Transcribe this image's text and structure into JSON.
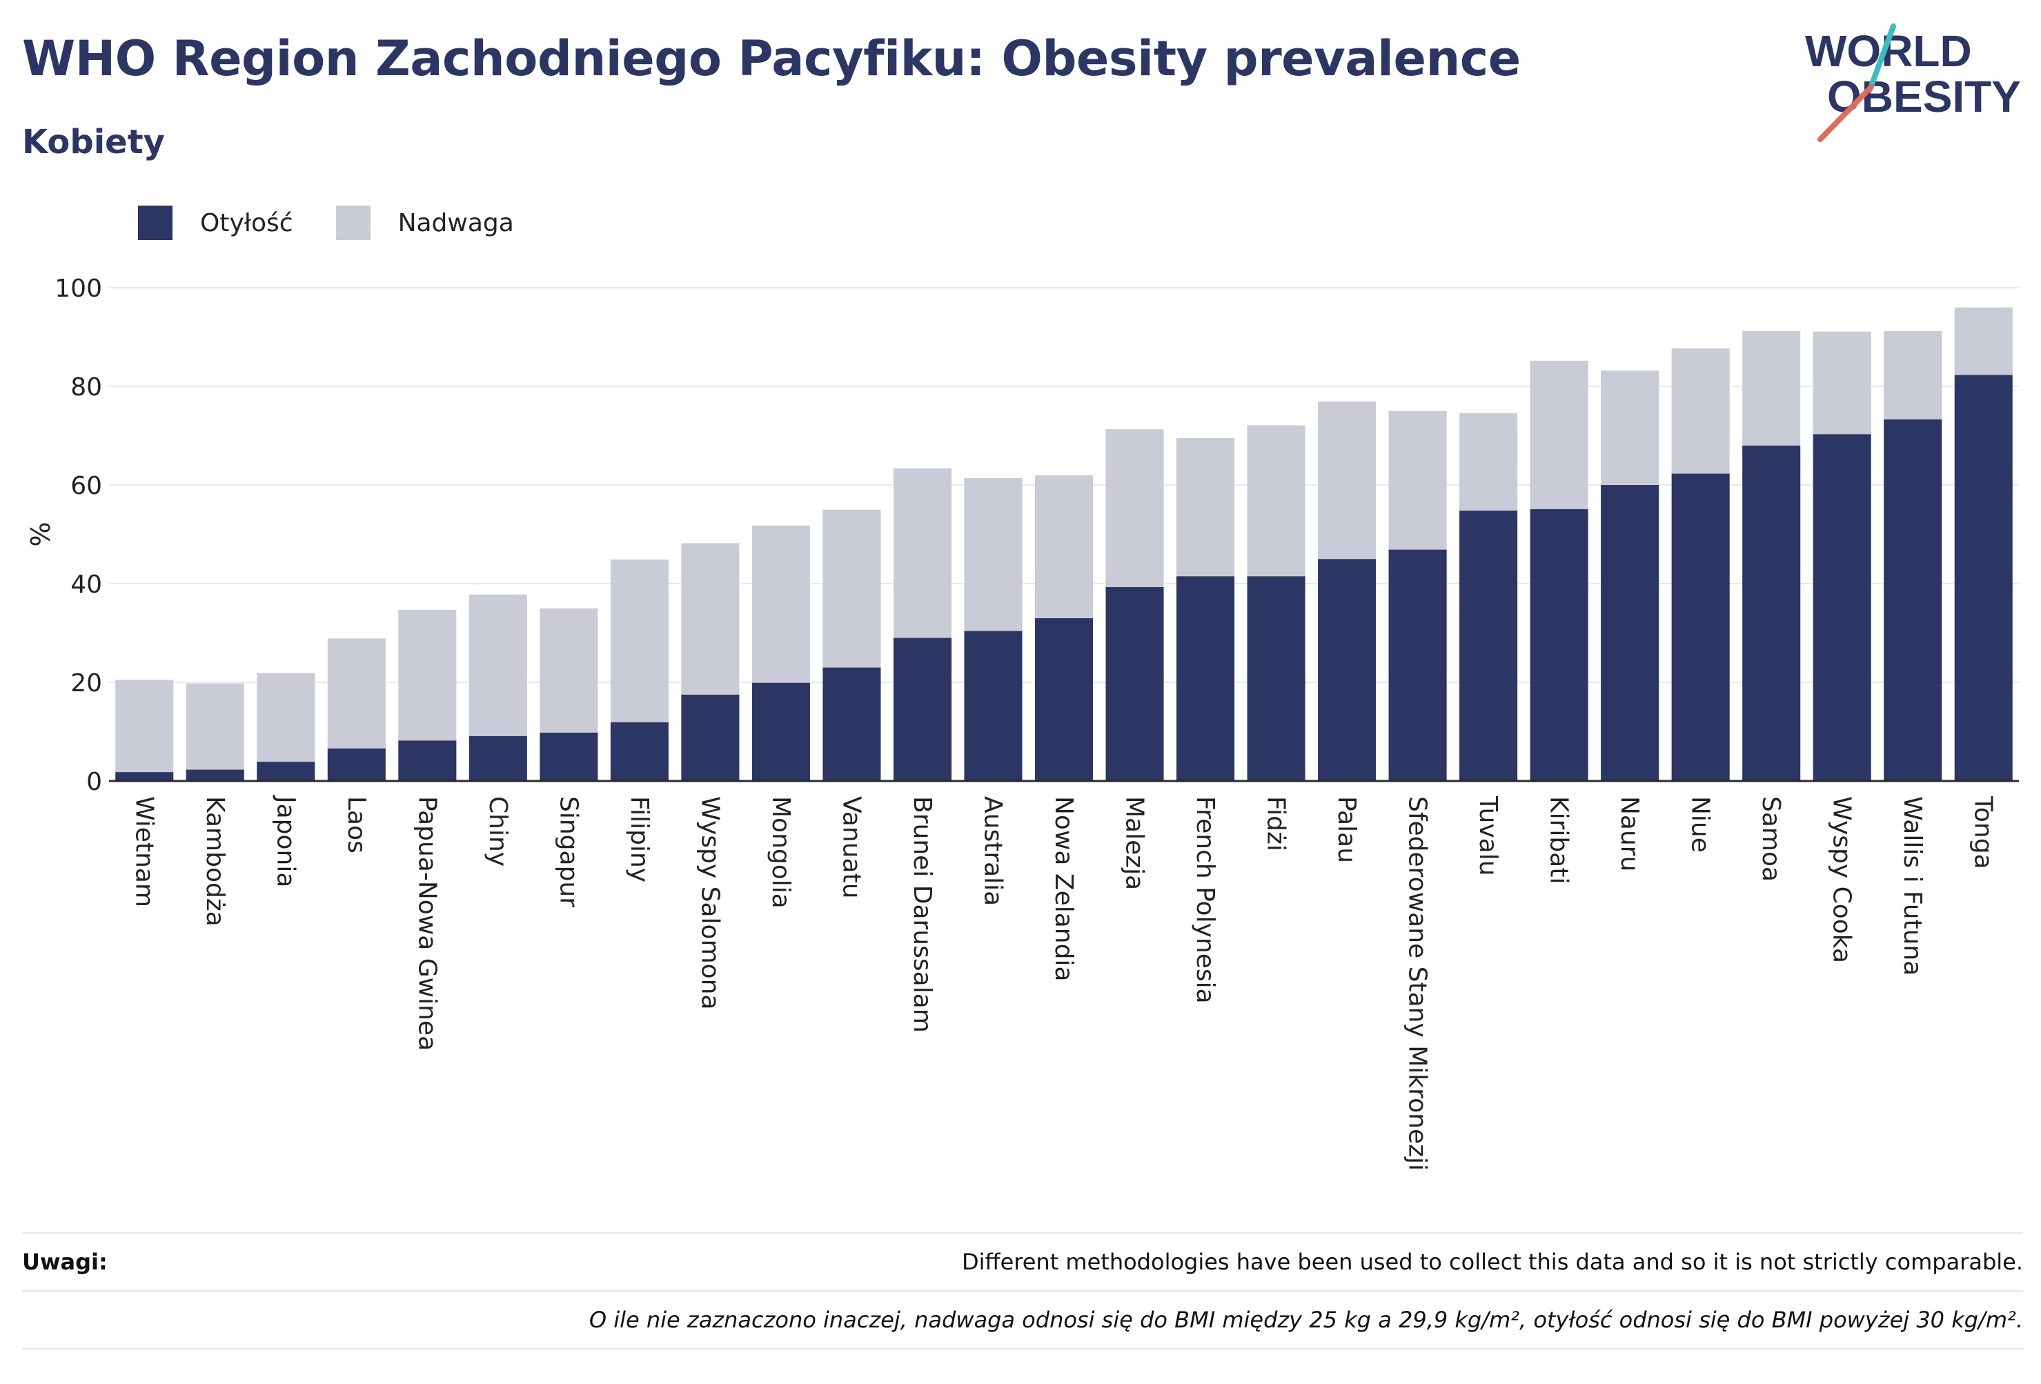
{
  "title": "WHO Region Zachodniego Pacyfiku: Obesity prevalence",
  "subtitle": "Kobiety",
  "logo": {
    "line1": "WORLD",
    "line2": "OBESITY"
  },
  "colors": {
    "obesity": "#2b3665",
    "overweight": "#c9cbd7",
    "text": "#2b3665",
    "accent_red": "#e06b5c",
    "accent_teal": "#3bbcc0"
  },
  "legend": {
    "obesity_label": "Otyłość",
    "overweight_label": "Nadwaga"
  },
  "chart_data": {
    "type": "bar",
    "stacked": true,
    "ylabel": "%",
    "ylim": [
      0,
      100
    ],
    "yticks": [
      0,
      20,
      40,
      60,
      80,
      100
    ],
    "grid": true,
    "legend_position": "top-left",
    "categories": [
      "Wietnam",
      "Kambodża",
      "Japonia",
      "Laos",
      "Papua-Nowa Gwinea",
      "Chiny",
      "Singapur",
      "Filipiny",
      "Wyspy Salomona",
      "Mongolia",
      "Vanuatu",
      "Brunei Darussalam",
      "Australia",
      "Nowa Zelandia",
      "Malezja",
      "French Polynesia",
      "Fidżi",
      "Palau",
      "Sfederowane Stany Mikronezji",
      "Tuvalu",
      "Kiribati",
      "Nauru",
      "Niue",
      "Samoa",
      "Wyspy Cooka",
      "Wallis i Futuna",
      "Tonga"
    ],
    "series": [
      {
        "name": "Otyłość",
        "values": [
          1.8,
          2.3,
          3.9,
          6.6,
          8.2,
          9.1,
          9.8,
          11.9,
          17.5,
          19.9,
          23.0,
          29.0,
          30.4,
          33.0,
          39.3,
          41.5,
          41.5,
          45.0,
          46.9,
          54.8,
          55.1,
          60.0,
          62.3,
          68.0,
          70.3,
          73.3,
          82.3
        ]
      },
      {
        "name": "Nadwaga",
        "values": [
          18.7,
          17.5,
          18.0,
          22.3,
          26.5,
          28.7,
          25.2,
          33.0,
          30.7,
          31.9,
          32.0,
          34.4,
          31.0,
          29.0,
          32.0,
          28.0,
          30.6,
          31.9,
          28.1,
          19.8,
          30.1,
          23.2,
          25.4,
          23.2,
          20.8,
          17.9,
          13.7
        ]
      }
    ]
  },
  "notes": {
    "label": "Uwagi:",
    "text": "Different methodologies have been used to collect this data and so it is not strictly comparable.",
    "definition": "O ile nie zaznaczono inaczej, nadwaga odnosi się do BMI między 25 kg a 29,9 kg/m², otyłość odnosi się do BMI powyżej 30 kg/m²."
  }
}
